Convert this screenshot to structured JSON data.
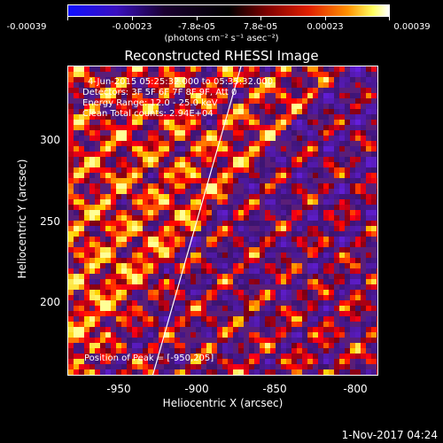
{
  "colorbar": {
    "labels": [
      "-0.00039",
      "-0.00023",
      "-7.8e-05",
      "7.8e-05",
      "0.00023",
      "0.00039"
    ],
    "units": "(photons cm⁻² s⁻¹ asec⁻²)"
  },
  "title": "Reconstructed RHESSI Image",
  "annotations": {
    "time": "4-Jun-2015 05:25:32.000 to 05:35:32.000",
    "detectors": "Detectors: 3F 5F 6F 7F 8F 9F, Att 0",
    "energy": "Energy Range: 12.0 - 25.0 keV",
    "clean": "Clean     Total counts: 2.94E+04",
    "peak": "Position of Peak = [-950,205]"
  },
  "axes": {
    "xlabel": "Heliocentric X (arcsec)",
    "ylabel": "Heliocentric Y (arcsec)",
    "xticks": [
      "-950",
      "-900",
      "-850",
      "-800"
    ],
    "yticks": [
      "300",
      "250",
      "200"
    ]
  },
  "footer": "1-Nov-2017 04:24"
}
